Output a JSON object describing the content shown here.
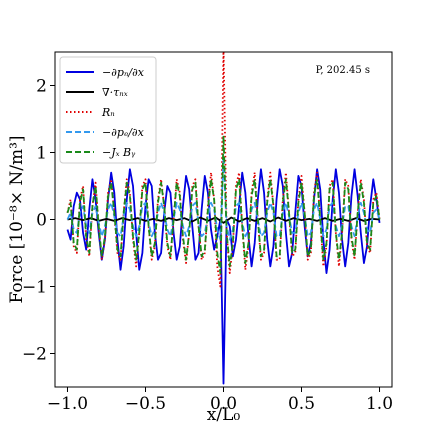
{
  "chart_data": {
    "type": "line",
    "xlabel": "x/L₀",
    "ylabel": "Force [10⁻⁸× N/m³]",
    "annotation": "P, 202.45 s",
    "xlim": [
      -1.08,
      1.08
    ],
    "ylim": [
      -2.5,
      2.5
    ],
    "xticks": [
      {
        "value": -1.0,
        "label": "−1.0"
      },
      {
        "value": -0.5,
        "label": "−0.5"
      },
      {
        "value": 0.0,
        "label": "0.0"
      },
      {
        "value": 0.5,
        "label": "0.5"
      },
      {
        "value": 1.0,
        "label": "1.0"
      }
    ],
    "yticks": [
      {
        "value": -2,
        "label": "−2"
      },
      {
        "value": -1,
        "label": "−1"
      },
      {
        "value": 0,
        "label": "0"
      },
      {
        "value": 1,
        "label": "1"
      },
      {
        "value": 2,
        "label": "2"
      }
    ],
    "grid": false,
    "legend_position": "top-left",
    "series": [
      {
        "name": "−∂pₙ/∂x",
        "color": "#0000e0",
        "dash": "solid",
        "x": [
          -1.0,
          -0.98,
          -0.96,
          -0.94,
          -0.92,
          -0.9,
          -0.88,
          -0.86,
          -0.84,
          -0.82,
          -0.8,
          -0.78,
          -0.76,
          -0.74,
          -0.72,
          -0.7,
          -0.68,
          -0.66,
          -0.64,
          -0.62,
          -0.6,
          -0.58,
          -0.56,
          -0.54,
          -0.52,
          -0.5,
          -0.48,
          -0.46,
          -0.44,
          -0.42,
          -0.4,
          -0.38,
          -0.36,
          -0.34,
          -0.32,
          -0.3,
          -0.28,
          -0.26,
          -0.24,
          -0.22,
          -0.2,
          -0.18,
          -0.16,
          -0.14,
          -0.12,
          -0.1,
          -0.08,
          -0.06,
          -0.04,
          -0.02,
          0.0,
          0.02,
          0.04,
          0.06,
          0.08,
          0.1,
          0.12,
          0.14,
          0.16,
          0.18,
          0.2,
          0.22,
          0.24,
          0.26,
          0.28,
          0.3,
          0.32,
          0.34,
          0.36,
          0.38,
          0.4,
          0.42,
          0.44,
          0.46,
          0.48,
          0.5,
          0.52,
          0.54,
          0.56,
          0.58,
          0.6,
          0.62,
          0.64,
          0.66,
          0.68,
          0.7,
          0.72,
          0.74,
          0.76,
          0.78,
          0.8,
          0.82,
          0.84,
          0.86,
          0.88,
          0.9,
          0.92,
          0.94,
          0.96,
          0.98,
          1.0
        ],
        "y": [
          -0.15,
          -0.3,
          0.2,
          0.4,
          0.3,
          -0.2,
          -0.45,
          0.15,
          0.6,
          0.3,
          -0.2,
          -0.6,
          -0.3,
          0.3,
          0.7,
          0.4,
          -0.3,
          -0.75,
          -0.4,
          0.3,
          0.75,
          0.5,
          -0.2,
          -0.75,
          -0.5,
          0.2,
          0.6,
          0.5,
          -0.2,
          -0.6,
          -0.5,
          0.1,
          0.5,
          0.4,
          -0.2,
          -0.6,
          -0.4,
          0.2,
          0.65,
          0.45,
          -0.1,
          -0.6,
          -0.5,
          0.15,
          0.65,
          0.4,
          -0.15,
          -0.45,
          -0.25,
          0.0,
          -2.45,
          0.0,
          -0.1,
          -0.55,
          -0.3,
          0.2,
          0.7,
          0.4,
          -0.25,
          -0.7,
          -0.35,
          0.3,
          0.75,
          0.4,
          -0.3,
          -0.7,
          -0.4,
          0.3,
          0.75,
          0.5,
          -0.2,
          -0.7,
          -0.5,
          0.1,
          0.65,
          0.5,
          -0.1,
          -0.55,
          -0.35,
          0.3,
          0.75,
          0.45,
          -0.3,
          -0.8,
          -0.45,
          0.3,
          0.75,
          0.4,
          -0.3,
          -0.7,
          -0.35,
          0.35,
          0.75,
          0.35,
          -0.2,
          -0.65,
          -0.4,
          0.2,
          0.6,
          0.3,
          -0.05
        ]
      },
      {
        "name": "∇·τₙₓ",
        "color": "#000000",
        "dash": "solid",
        "x": [
          -1.0,
          -0.95,
          -0.9,
          -0.85,
          -0.8,
          -0.75,
          -0.7,
          -0.65,
          -0.6,
          -0.55,
          -0.5,
          -0.45,
          -0.4,
          -0.35,
          -0.3,
          -0.25,
          -0.2,
          -0.15,
          -0.1,
          -0.05,
          0.0,
          0.05,
          0.1,
          0.15,
          0.2,
          0.25,
          0.3,
          0.35,
          0.4,
          0.45,
          0.5,
          0.55,
          0.6,
          0.65,
          0.7,
          0.75,
          0.8,
          0.85,
          0.9,
          0.95,
          1.0
        ],
        "y": [
          0.0,
          0.02,
          -0.01,
          0.02,
          -0.02,
          0.01,
          -0.02,
          0.02,
          -0.01,
          0.02,
          -0.02,
          0.01,
          -0.02,
          0.02,
          -0.01,
          0.02,
          -0.03,
          0.03,
          -0.02,
          0.03,
          -0.05,
          0.03,
          -0.03,
          0.02,
          -0.02,
          0.02,
          -0.03,
          0.03,
          -0.02,
          0.02,
          -0.01,
          0.01,
          -0.02,
          0.02,
          -0.02,
          0.01,
          -0.02,
          0.02,
          -0.02,
          0.01,
          0.0
        ]
      },
      {
        "name": "Rₙ",
        "color": "#e00000",
        "dash": "dotted",
        "x": [
          -1.0,
          -0.98,
          -0.96,
          -0.94,
          -0.92,
          -0.9,
          -0.88,
          -0.86,
          -0.84,
          -0.82,
          -0.8,
          -0.78,
          -0.76,
          -0.74,
          -0.72,
          -0.7,
          -0.68,
          -0.66,
          -0.64,
          -0.62,
          -0.6,
          -0.58,
          -0.56,
          -0.54,
          -0.52,
          -0.5,
          -0.48,
          -0.46,
          -0.44,
          -0.42,
          -0.4,
          -0.38,
          -0.36,
          -0.34,
          -0.32,
          -0.3,
          -0.28,
          -0.26,
          -0.24,
          -0.22,
          -0.2,
          -0.18,
          -0.16,
          -0.14,
          -0.12,
          -0.1,
          -0.08,
          -0.06,
          -0.04,
          -0.02,
          0.0,
          0.02,
          0.04,
          0.06,
          0.08,
          0.1,
          0.12,
          0.14,
          0.16,
          0.18,
          0.2,
          0.22,
          0.24,
          0.26,
          0.28,
          0.3,
          0.32,
          0.34,
          0.36,
          0.38,
          0.4,
          0.42,
          0.44,
          0.46,
          0.48,
          0.5,
          0.52,
          0.54,
          0.56,
          0.58,
          0.6,
          0.62,
          0.64,
          0.66,
          0.68,
          0.7,
          0.72,
          0.74,
          0.76,
          0.78,
          0.8,
          0.82,
          0.84,
          0.86,
          0.88,
          0.9,
          0.92,
          0.94,
          0.96,
          0.98,
          1.0
        ],
        "y": [
          0.1,
          0.3,
          -0.4,
          -0.5,
          0.3,
          0.5,
          -0.3,
          -0.55,
          0.2,
          0.55,
          -0.1,
          -0.6,
          -0.3,
          0.4,
          0.6,
          0.1,
          -0.5,
          -0.6,
          0.1,
          0.6,
          0.4,
          -0.3,
          -0.7,
          -0.2,
          0.5,
          0.6,
          -0.1,
          -0.6,
          -0.4,
          0.3,
          0.6,
          0.2,
          -0.4,
          -0.6,
          0.0,
          0.6,
          0.4,
          -0.3,
          -0.65,
          -0.2,
          0.5,
          0.6,
          -0.1,
          -0.6,
          -0.5,
          0.2,
          0.7,
          0.3,
          -0.7,
          -1.0,
          2.6,
          -0.2,
          -0.8,
          -0.4,
          0.5,
          0.7,
          -0.1,
          -0.75,
          -0.4,
          0.4,
          0.7,
          0.0,
          -0.6,
          -0.5,
          0.3,
          0.7,
          0.2,
          -0.6,
          -0.6,
          0.3,
          0.7,
          0.1,
          -0.55,
          -0.5,
          0.3,
          0.65,
          0.1,
          -0.6,
          -0.5,
          0.4,
          0.7,
          0.0,
          -0.7,
          -0.4,
          0.5,
          0.6,
          -0.2,
          -0.7,
          -0.2,
          0.6,
          0.5,
          -0.3,
          -0.6,
          0.1,
          0.6,
          0.3,
          -0.4,
          -0.5,
          0.3,
          0.4,
          0.0
        ]
      },
      {
        "name": "−∂pₑ/∂x",
        "color": "#3399ee",
        "dash": "dashed",
        "x": [
          -1.0,
          -0.98,
          -0.96,
          -0.94,
          -0.92,
          -0.9,
          -0.88,
          -0.86,
          -0.84,
          -0.82,
          -0.8,
          -0.78,
          -0.76,
          -0.74,
          -0.72,
          -0.7,
          -0.68,
          -0.66,
          -0.64,
          -0.62,
          -0.6,
          -0.58,
          -0.56,
          -0.54,
          -0.52,
          -0.5,
          -0.48,
          -0.46,
          -0.44,
          -0.42,
          -0.4,
          -0.38,
          -0.36,
          -0.34,
          -0.32,
          -0.3,
          -0.28,
          -0.26,
          -0.24,
          -0.22,
          -0.2,
          -0.18,
          -0.16,
          -0.14,
          -0.12,
          -0.1,
          -0.08,
          -0.06,
          -0.04,
          -0.02,
          0.0,
          0.02,
          0.04,
          0.06,
          0.08,
          0.1,
          0.12,
          0.14,
          0.16,
          0.18,
          0.2,
          0.22,
          0.24,
          0.26,
          0.28,
          0.3,
          0.32,
          0.34,
          0.36,
          0.38,
          0.4,
          0.42,
          0.44,
          0.46,
          0.48,
          0.5,
          0.52,
          0.54,
          0.56,
          0.58,
          0.6,
          0.62,
          0.64,
          0.66,
          0.68,
          0.7,
          0.72,
          0.74,
          0.76,
          0.78,
          0.8,
          0.82,
          0.84,
          0.86,
          0.88,
          0.9,
          0.92,
          0.94,
          0.96,
          0.98,
          1.0
        ],
        "y": [
          0.0,
          0.1,
          -0.15,
          -0.2,
          0.1,
          0.2,
          -0.1,
          -0.2,
          0.1,
          0.2,
          -0.05,
          -0.25,
          -0.1,
          0.15,
          0.25,
          0.05,
          -0.2,
          -0.25,
          0.05,
          0.25,
          0.15,
          -0.1,
          -0.25,
          -0.1,
          0.2,
          0.25,
          -0.05,
          -0.25,
          -0.15,
          0.1,
          0.25,
          0.1,
          -0.15,
          -0.25,
          0.0,
          0.25,
          0.15,
          -0.1,
          -0.25,
          -0.1,
          0.2,
          0.25,
          -0.05,
          -0.25,
          -0.2,
          0.05,
          0.25,
          0.15,
          -0.15,
          -0.3,
          0.95,
          -0.1,
          -0.3,
          -0.15,
          0.2,
          0.25,
          -0.05,
          -0.25,
          -0.15,
          0.15,
          0.25,
          0.0,
          -0.25,
          -0.2,
          0.1,
          0.25,
          0.1,
          -0.25,
          -0.25,
          0.1,
          0.25,
          0.05,
          -0.2,
          -0.2,
          0.1,
          0.25,
          0.05,
          -0.25,
          -0.2,
          0.15,
          0.25,
          0.0,
          -0.25,
          -0.15,
          0.2,
          0.25,
          -0.1,
          -0.25,
          -0.1,
          0.2,
          0.2,
          -0.1,
          -0.25,
          0.05,
          0.25,
          0.1,
          -0.15,
          -0.2,
          0.1,
          0.15,
          0.0
        ]
      },
      {
        "name": "−Jₓ Bᵧ",
        "color": "#1a8a1a",
        "dash": "dashed",
        "x": [
          -1.0,
          -0.98,
          -0.96,
          -0.94,
          -0.92,
          -0.9,
          -0.88,
          -0.86,
          -0.84,
          -0.82,
          -0.8,
          -0.78,
          -0.76,
          -0.74,
          -0.72,
          -0.7,
          -0.68,
          -0.66,
          -0.64,
          -0.62,
          -0.6,
          -0.58,
          -0.56,
          -0.54,
          -0.52,
          -0.5,
          -0.48,
          -0.46,
          -0.44,
          -0.42,
          -0.4,
          -0.38,
          -0.36,
          -0.34,
          -0.32,
          -0.3,
          -0.28,
          -0.26,
          -0.24,
          -0.22,
          -0.2,
          -0.18,
          -0.16,
          -0.14,
          -0.12,
          -0.1,
          -0.08,
          -0.06,
          -0.04,
          -0.02,
          0.0,
          0.02,
          0.04,
          0.06,
          0.08,
          0.1,
          0.12,
          0.14,
          0.16,
          0.18,
          0.2,
          0.22,
          0.24,
          0.26,
          0.28,
          0.3,
          0.32,
          0.34,
          0.36,
          0.38,
          0.4,
          0.42,
          0.44,
          0.46,
          0.48,
          0.5,
          0.52,
          0.54,
          0.56,
          0.58,
          0.6,
          0.62,
          0.64,
          0.66,
          0.68,
          0.7,
          0.72,
          0.74,
          0.76,
          0.78,
          0.8,
          0.82,
          0.84,
          0.86,
          0.88,
          0.9,
          0.92,
          0.94,
          0.96,
          0.98,
          1.0
        ],
        "y": [
          0.1,
          0.25,
          -0.35,
          -0.45,
          0.25,
          0.45,
          -0.25,
          -0.5,
          0.2,
          0.5,
          -0.1,
          -0.55,
          -0.25,
          0.35,
          0.55,
          0.1,
          -0.45,
          -0.55,
          0.1,
          0.55,
          0.35,
          -0.25,
          -0.6,
          -0.2,
          0.45,
          0.55,
          -0.1,
          -0.55,
          -0.35,
          0.25,
          0.55,
          0.2,
          -0.35,
          -0.55,
          0.0,
          0.55,
          0.35,
          -0.25,
          -0.6,
          -0.2,
          0.45,
          0.55,
          -0.1,
          -0.55,
          -0.45,
          0.15,
          0.6,
          0.3,
          -0.5,
          -0.8,
          1.25,
          -0.2,
          -0.7,
          -0.35,
          0.45,
          0.6,
          -0.1,
          -0.65,
          -0.35,
          0.35,
          0.6,
          0.0,
          -0.55,
          -0.45,
          0.25,
          0.6,
          0.2,
          -0.55,
          -0.55,
          0.25,
          0.6,
          0.1,
          -0.5,
          -0.45,
          0.25,
          0.55,
          0.1,
          -0.55,
          -0.45,
          0.35,
          0.6,
          0.0,
          -0.6,
          -0.35,
          0.45,
          0.55,
          -0.2,
          -0.6,
          -0.2,
          0.55,
          0.45,
          -0.25,
          -0.55,
          0.1,
          0.55,
          0.25,
          -0.35,
          -0.45,
          0.25,
          0.35,
          0.0
        ]
      }
    ]
  }
}
